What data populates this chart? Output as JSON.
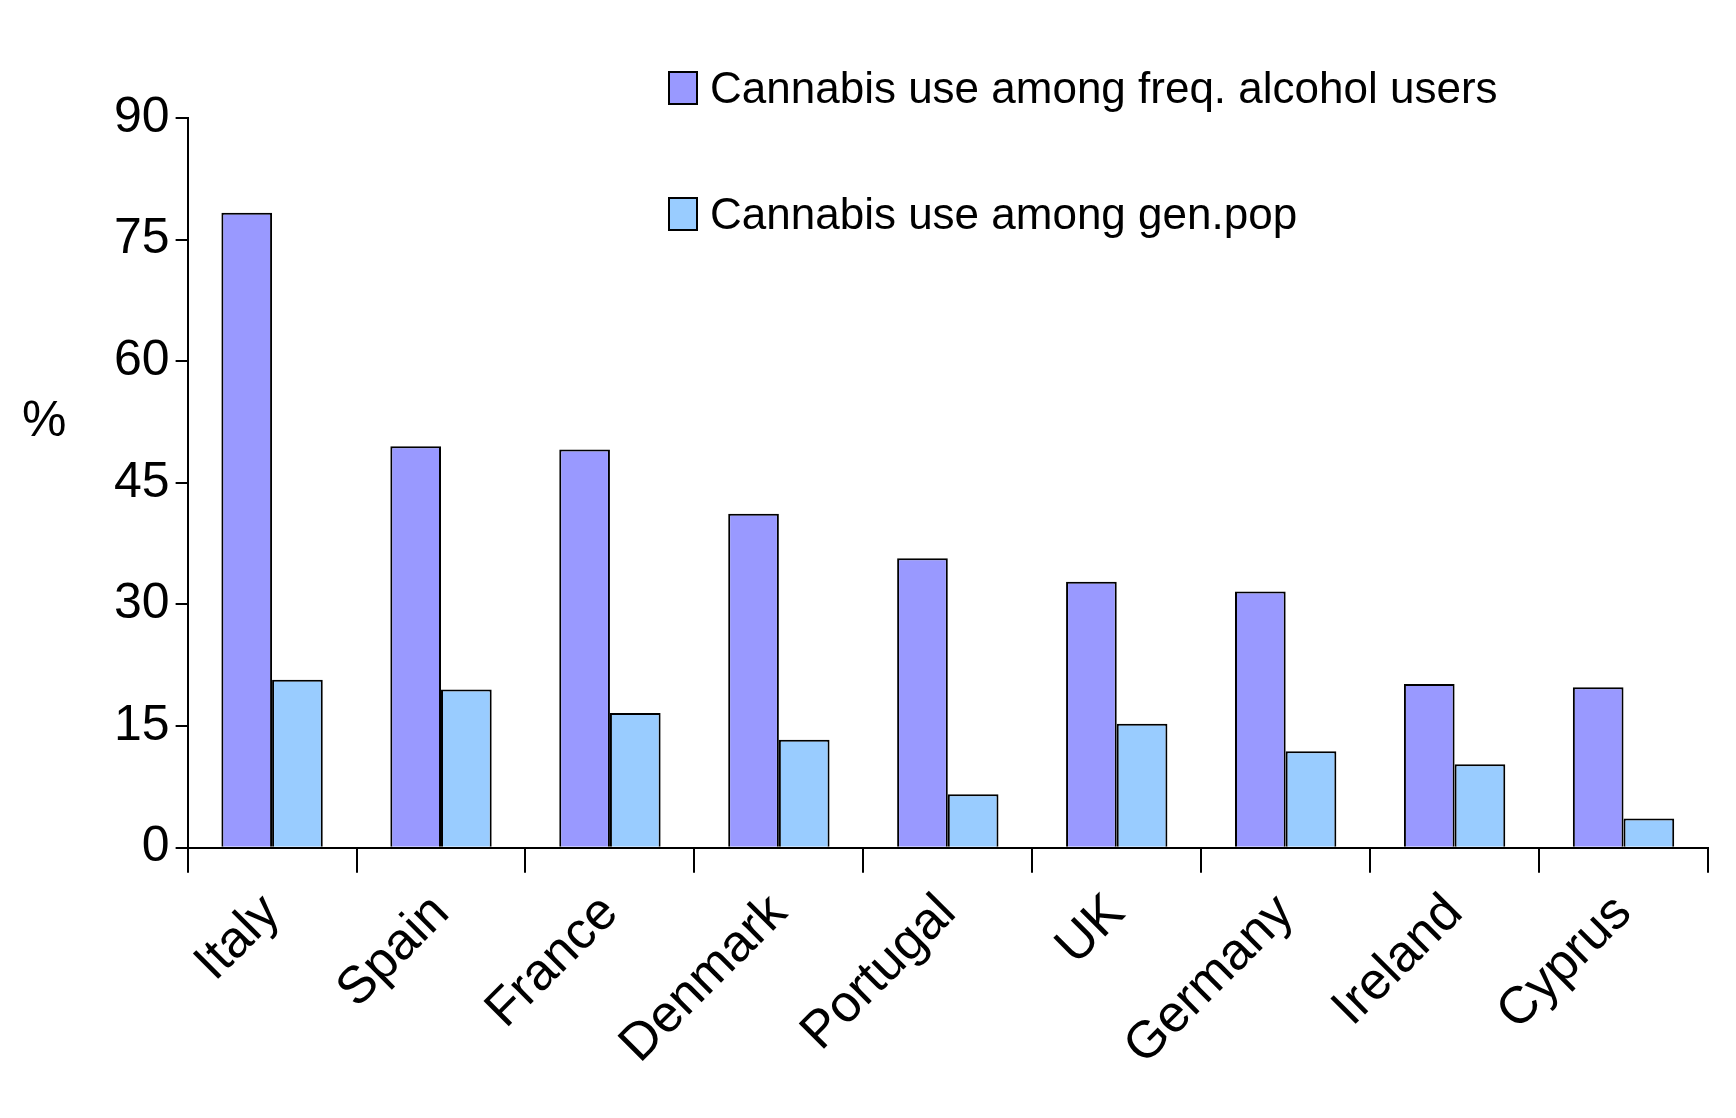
{
  "chart_data": {
    "type": "bar",
    "ylabel": "%",
    "categories": [
      "Italy",
      "Spain",
      "France",
      "Denmark",
      "Portugal",
      "UK",
      "Germany",
      "Ireland",
      "Cyprus"
    ],
    "series": [
      {
        "name": "Cannabis use among  freq. alcohol users",
        "color": "#9999ff",
        "values": [
          78.3,
          49.5,
          49.1,
          41.2,
          35.7,
          32.8,
          31.6,
          20.2,
          19.8
        ]
      },
      {
        "name": "Cannabis use among  gen.pop",
        "color": "#99ccff",
        "values": [
          20.7,
          19.5,
          16.6,
          13.3,
          6.6,
          15.3,
          11.9,
          10.3,
          3.6
        ]
      }
    ],
    "ylim": [
      0,
      90
    ],
    "yticks": [
      0,
      15,
      30,
      45,
      60,
      75,
      90
    ],
    "grid": false,
    "legend": "top right"
  }
}
